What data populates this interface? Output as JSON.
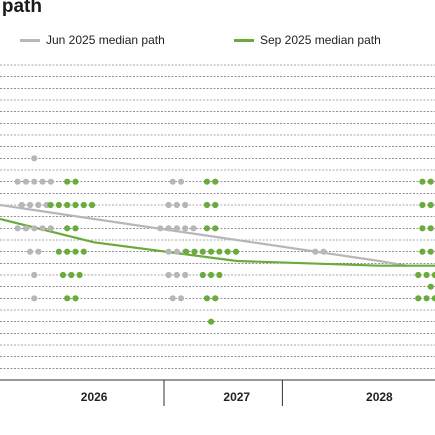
{
  "title": "e path",
  "colors": {
    "jun": "#b7b7b7",
    "sep": "#6aab3c",
    "grid": "#555555",
    "axis": "#333333"
  },
  "chart_data": {
    "type": "scatter",
    "xlim": [
      2025.3,
      2028.35
    ],
    "ylim": [
      -1.5,
      12.0
    ],
    "grid": "dashed horizontal",
    "legend_position": "top",
    "categories": [
      "2026",
      "2027",
      "2028"
    ],
    "series": [
      {
        "name": "Jun 2025 median path",
        "type": "line",
        "x": [
          2025.3,
          2025.96,
          2026.96,
          2027.96,
          2028.15
        ],
        "y": [
          6.0,
          5.4,
          4.5,
          3.6,
          3.4
        ]
      },
      {
        "name": "Sep 2025 median path",
        "type": "line",
        "x": [
          2025.3,
          2025.96,
          2026.96,
          2027.96,
          2028.35
        ],
        "y": [
          5.4,
          4.4,
          3.6,
          3.4,
          3.4
        ]
      },
      {
        "name": "Jun 2025",
        "type": "dots",
        "points": [
          {
            "x": 2025.54,
            "y": 8,
            "n": 1
          },
          {
            "x": 2025.54,
            "y": 7,
            "n": 5
          },
          {
            "x": 2025.54,
            "y": 6,
            "n": 4
          },
          {
            "x": 2025.54,
            "y": 5,
            "n": 5
          },
          {
            "x": 2025.54,
            "y": 4,
            "n": 2
          },
          {
            "x": 2025.54,
            "y": 3,
            "n": 1
          },
          {
            "x": 2025.54,
            "y": 2,
            "n": 1
          },
          {
            "x": 2026.54,
            "y": 7,
            "n": 2
          },
          {
            "x": 2026.54,
            "y": 6,
            "n": 3
          },
          {
            "x": 2026.54,
            "y": 5,
            "n": 5
          },
          {
            "x": 2026.54,
            "y": 4,
            "n": 3
          },
          {
            "x": 2026.54,
            "y": 3,
            "n": 3
          },
          {
            "x": 2026.54,
            "y": 2,
            "n": 2
          },
          {
            "x": 2027.54,
            "y": 4,
            "n": 2
          }
        ]
      },
      {
        "name": "Sep 2025",
        "type": "dots",
        "points": [
          {
            "x": 2025.8,
            "y": 7,
            "n": 2
          },
          {
            "x": 2025.8,
            "y": 6,
            "n": 6
          },
          {
            "x": 2025.8,
            "y": 5,
            "n": 2
          },
          {
            "x": 2025.8,
            "y": 4,
            "n": 4
          },
          {
            "x": 2025.8,
            "y": 3,
            "n": 3
          },
          {
            "x": 2025.8,
            "y": 2,
            "n": 2
          },
          {
            "x": 2026.78,
            "y": 7,
            "n": 2
          },
          {
            "x": 2026.78,
            "y": 6,
            "n": 2
          },
          {
            "x": 2026.78,
            "y": 5,
            "n": 2
          },
          {
            "x": 2026.78,
            "y": 4,
            "n": 7
          },
          {
            "x": 2026.78,
            "y": 3,
            "n": 3
          },
          {
            "x": 2026.78,
            "y": 2,
            "n": 2
          },
          {
            "x": 2026.78,
            "y": 1,
            "n": 1
          },
          {
            "x": 2028.32,
            "y": 7,
            "n": 3
          },
          {
            "x": 2028.32,
            "y": 6,
            "n": 3
          },
          {
            "x": 2028.32,
            "y": 5,
            "n": 3
          },
          {
            "x": 2028.32,
            "y": 4,
            "n": 3
          },
          {
            "x": 2028.32,
            "y": 3,
            "n": 4
          },
          {
            "x": 2028.32,
            "y": 2.5,
            "n": 1
          },
          {
            "x": 2028.32,
            "y": 2,
            "n": 4
          }
        ]
      }
    ]
  }
}
